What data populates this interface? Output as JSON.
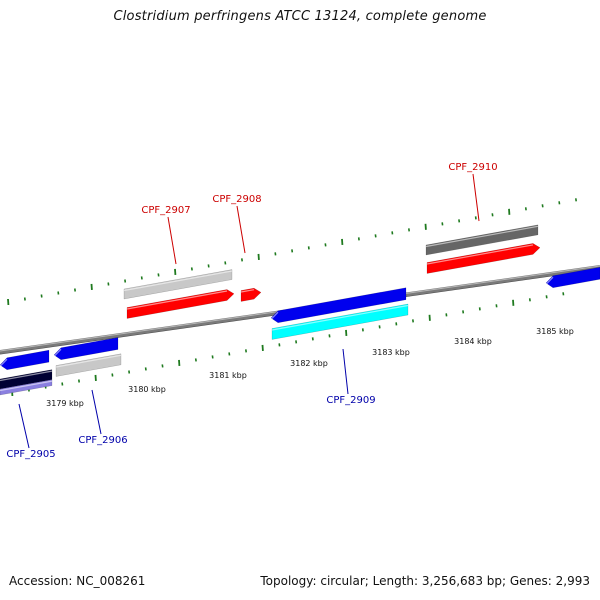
{
  "title": "Clostridium perfringens ATCC 13124, complete genome",
  "footer": {
    "accession": "Accession: NC_008261",
    "stats": "Topology: circular; Length: 3,256,683 bp; Genes: 2,993"
  },
  "colors": {
    "backbone": "#7a7a7a",
    "tick": "#1f7a1f",
    "forward_label": "#cc0000",
    "reverse_label": "#0000aa",
    "red_gene": "#ff0000",
    "blue_gene": "#0000ee",
    "cyan_gene": "#00ffff",
    "light_gray_gene": "#c8c8c8",
    "dark_gray_gene": "#666666",
    "dark_navy_gene": "#000033",
    "lavender_gene": "#8a7fe0"
  },
  "genes": {
    "forward": [
      {
        "label": "CPF_2907"
      },
      {
        "label": "CPF_2908"
      },
      {
        "label": "CPF_2910"
      }
    ],
    "reverse": [
      {
        "label": "CPF_2905"
      },
      {
        "label": "CPF_2906"
      },
      {
        "label": "CPF_2909"
      }
    ]
  },
  "ticks": [
    {
      "label": "3179 kbp"
    },
    {
      "label": "3180 kbp"
    },
    {
      "label": "3181 kbp"
    },
    {
      "label": "3182 kbp"
    },
    {
      "label": "3183 kbp"
    },
    {
      "label": "3184 kbp"
    },
    {
      "label": "3185 kbp"
    }
  ]
}
